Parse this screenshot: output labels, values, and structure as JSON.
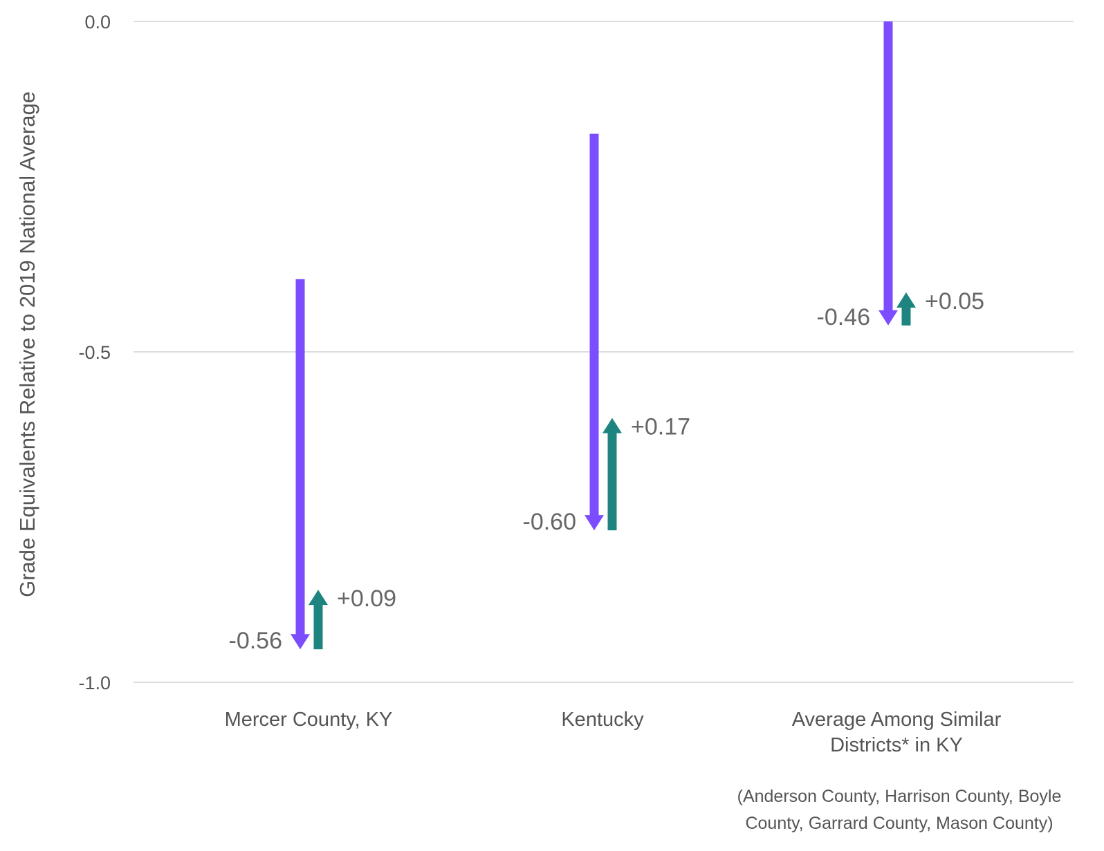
{
  "chart_data": {
    "type": "arrow",
    "ylabel": "Grade Equivalents Relative to 2019 National Average",
    "ylim": [
      -1.0,
      0.0
    ],
    "yticks": [
      {
        "value": 0.0,
        "label": "0.0"
      },
      {
        "value": -0.5,
        "label": "-0.5"
      },
      {
        "value": -1.0,
        "label": "-1.0"
      }
    ],
    "grid": true,
    "colors": {
      "decline": "#7c4dff",
      "recovery": "#1e847f"
    },
    "categories": [
      {
        "label_lines": [
          "Mercer County, KY"
        ],
        "start": -0.39,
        "decline": -0.56,
        "recovery": 0.09,
        "decline_label": "-0.56",
        "recovery_label": "+0.09"
      },
      {
        "label_lines": [
          "Kentucky"
        ],
        "start": -0.17,
        "decline": -0.6,
        "recovery": 0.17,
        "decline_label": "-0.60",
        "recovery_label": "+0.17"
      },
      {
        "label_lines": [
          "Average Among Similar",
          "Districts* in KY"
        ],
        "start": 0.0,
        "decline": -0.46,
        "recovery": 0.05,
        "decline_label": "-0.46",
        "recovery_label": "+0.05"
      }
    ],
    "footnote_lines": [
      "(Anderson County, Harrison County, Boyle",
      "County, Garrard County, Mason County)"
    ]
  }
}
